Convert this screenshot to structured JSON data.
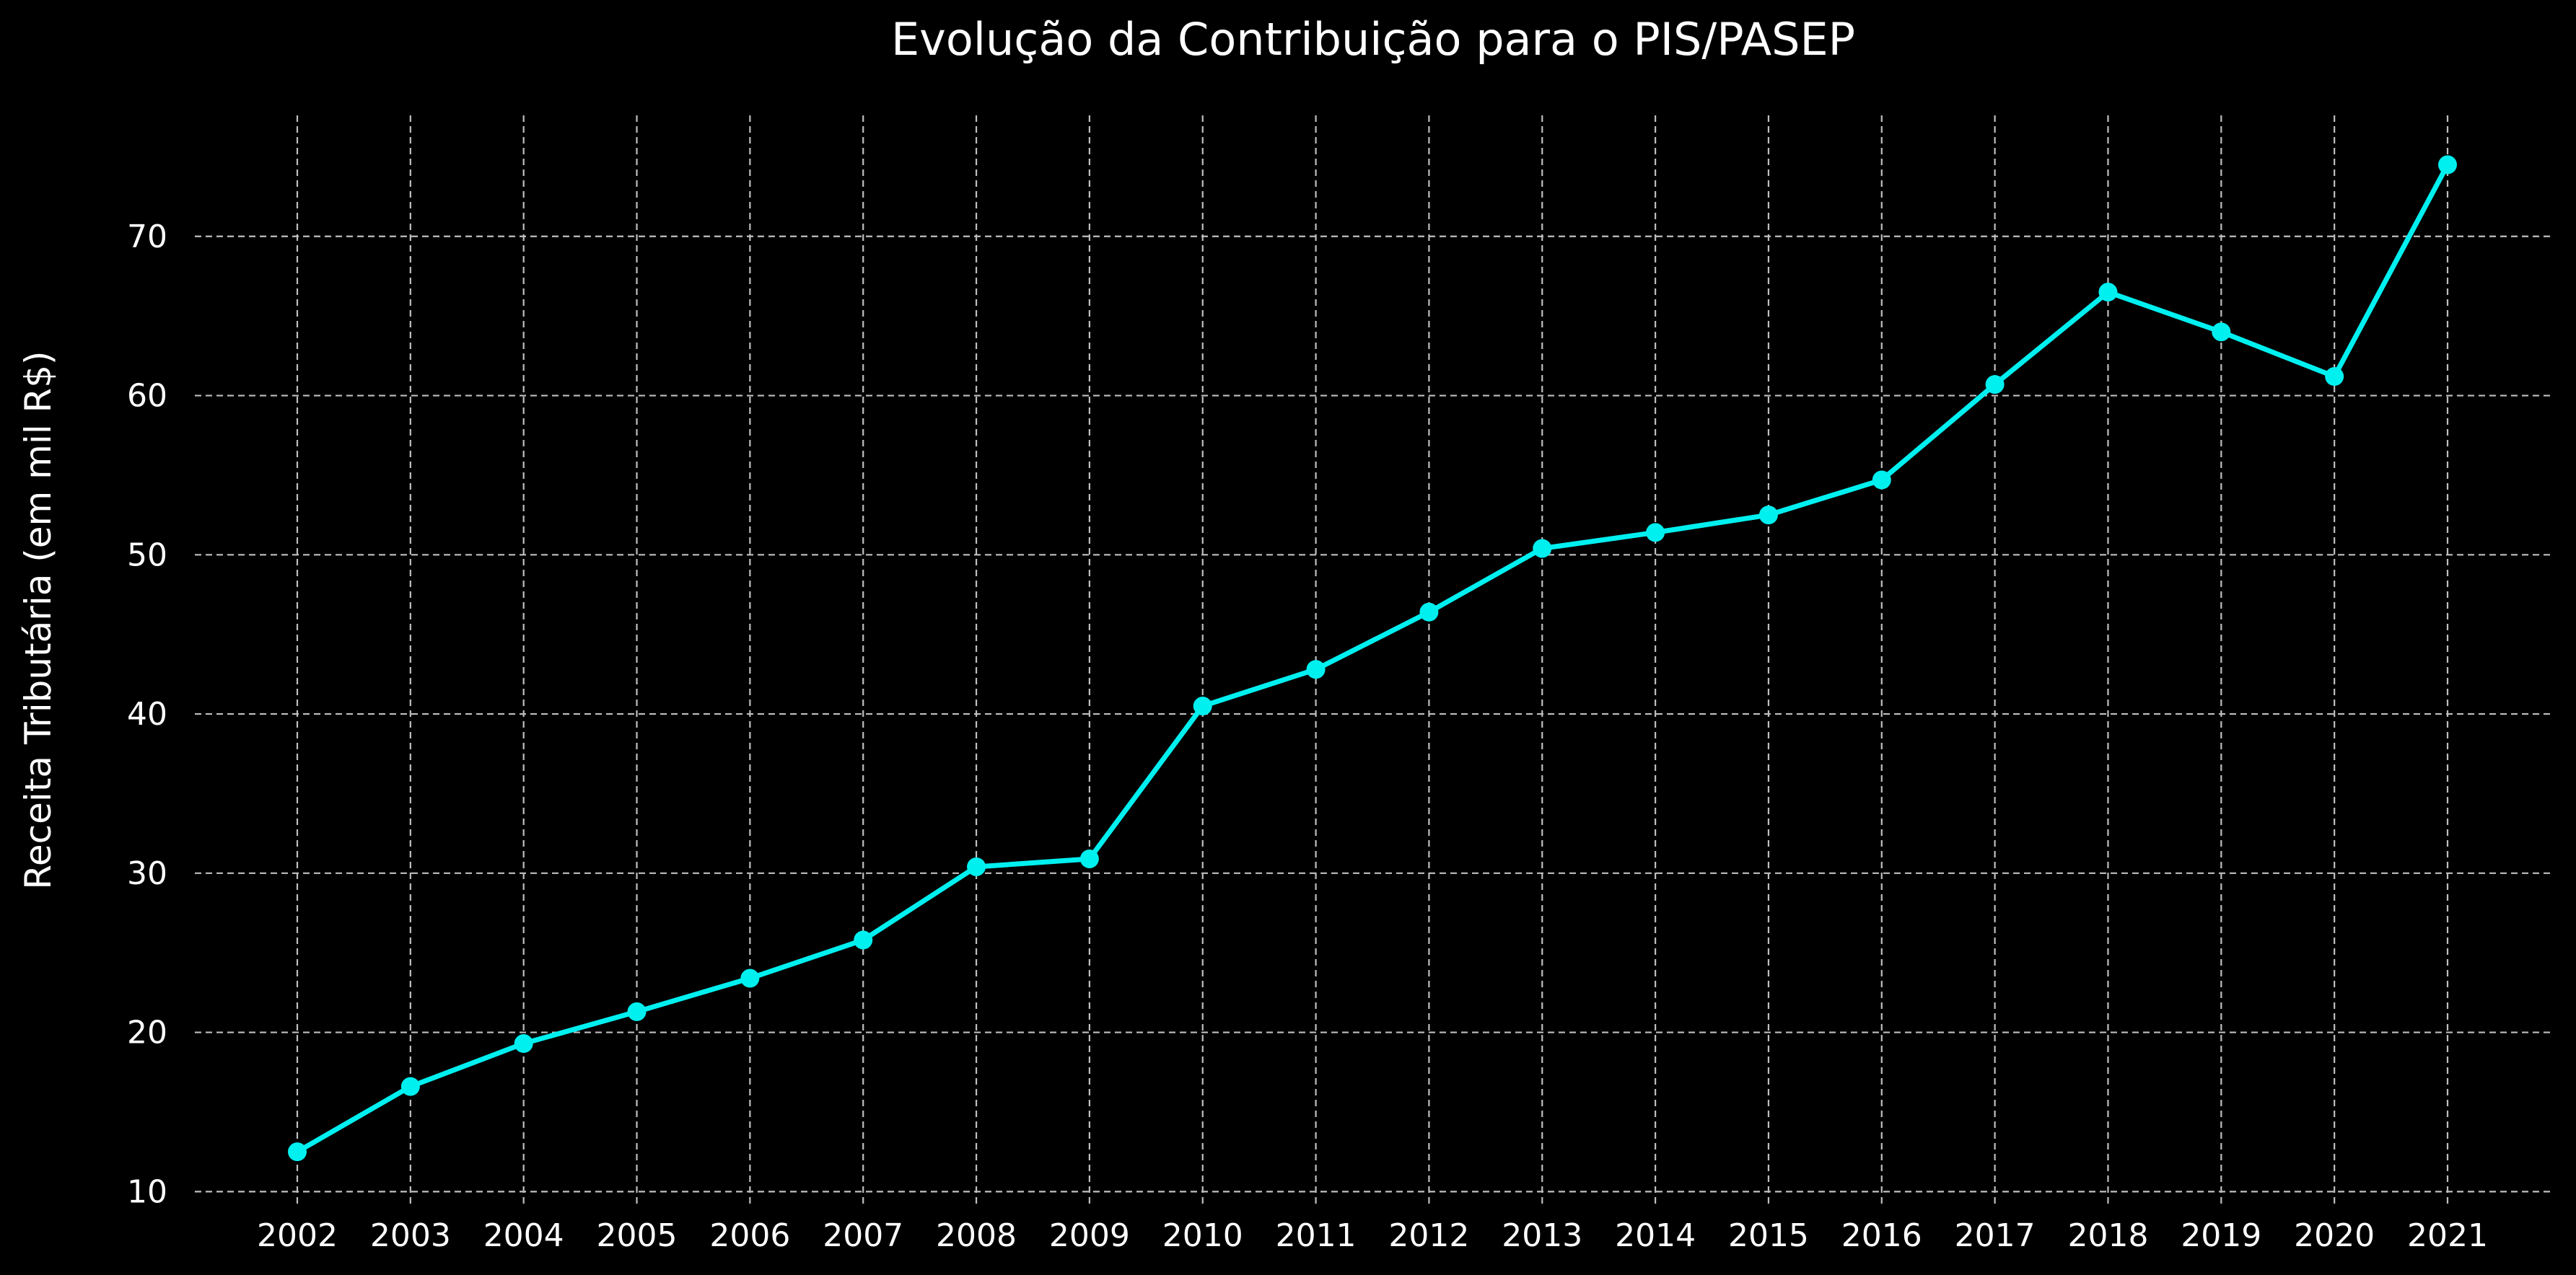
{
  "chart_data": {
    "type": "line",
    "title": "Evolução da Contribuição para o PIS/PASEP",
    "xlabel": "",
    "ylabel": "Receita Tributária (em mil R$)",
    "x": [
      "2002",
      "2003",
      "2004",
      "2005",
      "2006",
      "2007",
      "2008",
      "2009",
      "2010",
      "2011",
      "2012",
      "2013",
      "2014",
      "2015",
      "2016",
      "2017",
      "2018",
      "2019",
      "2020",
      "2021"
    ],
    "series": [
      {
        "values": [
          12.5,
          16.6,
          19.3,
          21.3,
          23.4,
          25.8,
          30.4,
          30.9,
          40.5,
          42.8,
          46.4,
          50.4,
          51.4,
          52.5,
          54.7,
          60.7,
          66.5,
          64.0,
          61.2,
          74.5
        ],
        "color": "#00f0f0"
      }
    ],
    "ylim": [
      9.2,
      77.6
    ],
    "yticks": [
      10,
      20,
      30,
      40,
      50,
      60,
      70
    ],
    "grid": true,
    "grid_style": "dashed",
    "background": "#000000",
    "text_color": "#ffffff",
    "grid_color": "#bfbfbf"
  }
}
